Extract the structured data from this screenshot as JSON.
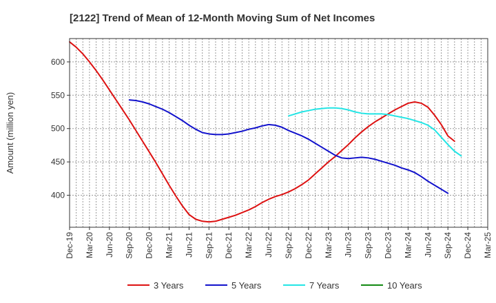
{
  "chart_data": {
    "type": "line",
    "title": "[2122]  Trend of Mean of 12-Month Moving Sum of Net Incomes",
    "xlabel": "",
    "ylabel": "Amount (million yen)",
    "x_ticks": [
      "Dec-19",
      "Mar-20",
      "Jun-20",
      "Sep-20",
      "Dec-20",
      "Mar-21",
      "Jun-21",
      "Sep-21",
      "Dec-21",
      "Mar-22",
      "Jun-22",
      "Sep-22",
      "Dec-22",
      "Mar-23",
      "Jun-23",
      "Sep-23",
      "Dec-23",
      "Mar-24",
      "Jun-24",
      "Sep-24",
      "Dec-24",
      "Mar-25"
    ],
    "y_ticks": [
      400,
      450,
      500,
      550,
      600
    ],
    "ylim": [
      352,
      635
    ],
    "grid": true,
    "legend_position": "bottom",
    "series": [
      {
        "name": "3 Years",
        "color": "#dd1111",
        "start_index": 0,
        "values": [
          630,
          622,
          612,
          600,
          587,
          573,
          558,
          543,
          528,
          513,
          497,
          481,
          465,
          449,
          432,
          415,
          399,
          384,
          371,
          364,
          361,
          360,
          361,
          364,
          367,
          370,
          374,
          378,
          383,
          389,
          394,
          398,
          401,
          405,
          410,
          416,
          423,
          432,
          441,
          450,
          458,
          467,
          476,
          486,
          495,
          503,
          510,
          516,
          522,
          528,
          533,
          538,
          540,
          538,
          532,
          520,
          506,
          489,
          481
        ]
      },
      {
        "name": "5 Years",
        "color": "#1111cc",
        "start_index": 9,
        "values": [
          543,
          542,
          540,
          537,
          533,
          529,
          524,
          518,
          512,
          505,
          499,
          494,
          492,
          491,
          491,
          492,
          494,
          496,
          499,
          501,
          504,
          506,
          505,
          502,
          497,
          493,
          489,
          484,
          478,
          472,
          466,
          460,
          456,
          455,
          456,
          457,
          456,
          454,
          451,
          448,
          445,
          441,
          438,
          434,
          428,
          421,
          415,
          409,
          403
        ]
      },
      {
        "name": "7 Years",
        "color": "#22e5e5",
        "start_index": 33,
        "values": [
          519,
          522,
          525,
          527,
          529,
          530,
          531,
          531,
          530,
          528,
          525,
          523,
          522,
          522,
          522,
          521,
          519,
          517,
          515,
          512,
          509,
          505,
          498,
          487,
          476,
          466,
          459
        ]
      },
      {
        "name": "10 Years",
        "color": "#118811",
        "start_index": 0,
        "values": []
      }
    ]
  }
}
